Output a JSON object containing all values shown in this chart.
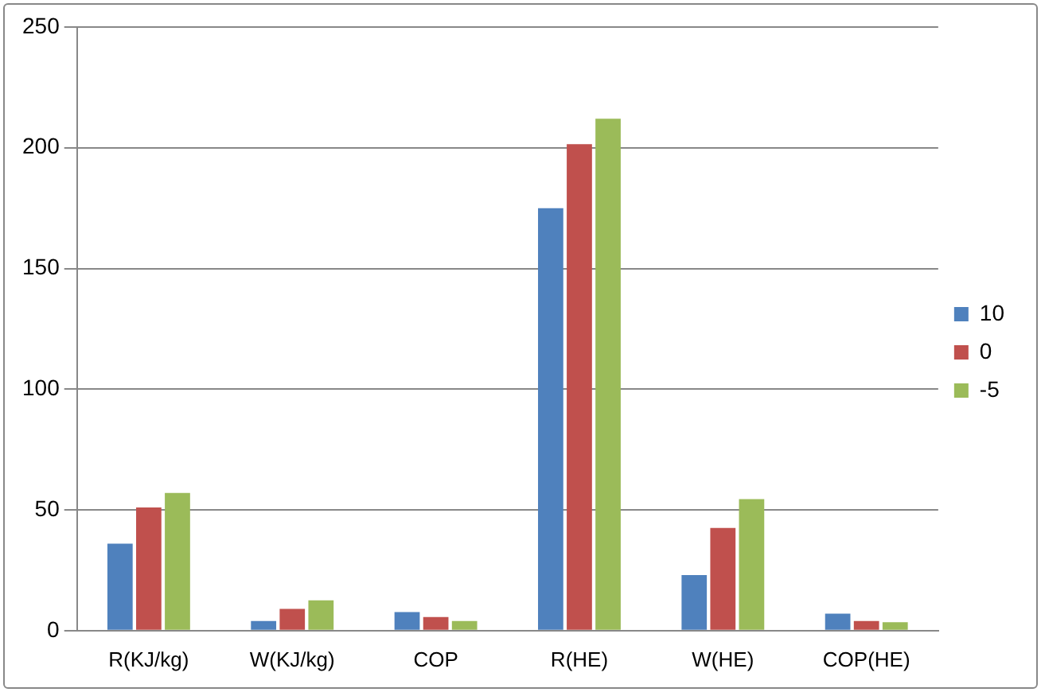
{
  "chart_data": {
    "type": "bar",
    "categories": [
      "R(KJ/kg)",
      "W(KJ/kg)",
      "COP",
      "R(HE)",
      "W(HE)",
      "COP(HE)"
    ],
    "series": [
      {
        "name": "10",
        "color": "#4f81bd",
        "values": [
          36,
          4,
          7.7,
          175,
          23,
          7
        ]
      },
      {
        "name": "0",
        "color": "#c0504d",
        "values": [
          51,
          9,
          5.6,
          201.5,
          42.5,
          4
        ]
      },
      {
        "name": "-5",
        "color": "#9bbb59",
        "values": [
          57,
          12.5,
          4,
          212,
          54.5,
          3.5
        ]
      }
    ],
    "ylim": [
      0,
      250
    ],
    "yticks": [
      0,
      50,
      100,
      150,
      200,
      250
    ],
    "grid": "y",
    "legend": "right"
  }
}
